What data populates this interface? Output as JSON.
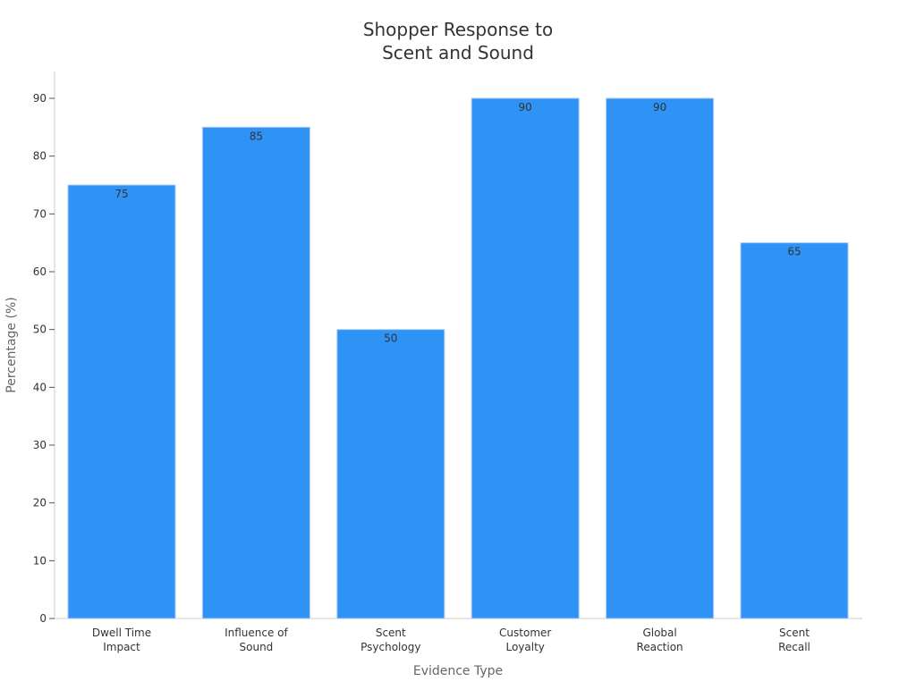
{
  "chart_data": {
    "type": "bar",
    "title": [
      "Shopper Response to",
      "Scent and Sound"
    ],
    "xlabel": "Evidence Type",
    "ylabel": "Percentage (%)",
    "categories": [
      [
        "Dwell Time",
        "Impact"
      ],
      [
        "Influence of",
        "Sound"
      ],
      [
        "Scent",
        "Psychology"
      ],
      [
        "Customer",
        "Loyalty"
      ],
      [
        "Global",
        "Reaction"
      ],
      [
        "Scent",
        "Recall"
      ]
    ],
    "values": [
      75,
      85,
      50,
      90,
      90,
      65
    ],
    "ylim": [
      0,
      95
    ],
    "yticks": [
      0,
      10,
      20,
      30,
      40,
      50,
      60,
      70,
      80,
      90
    ],
    "bar_color": "#2f93f6",
    "bar_edge_color": "#a9cdf3",
    "axis_color": "#cccccc",
    "grid": false,
    "legend": "none"
  }
}
